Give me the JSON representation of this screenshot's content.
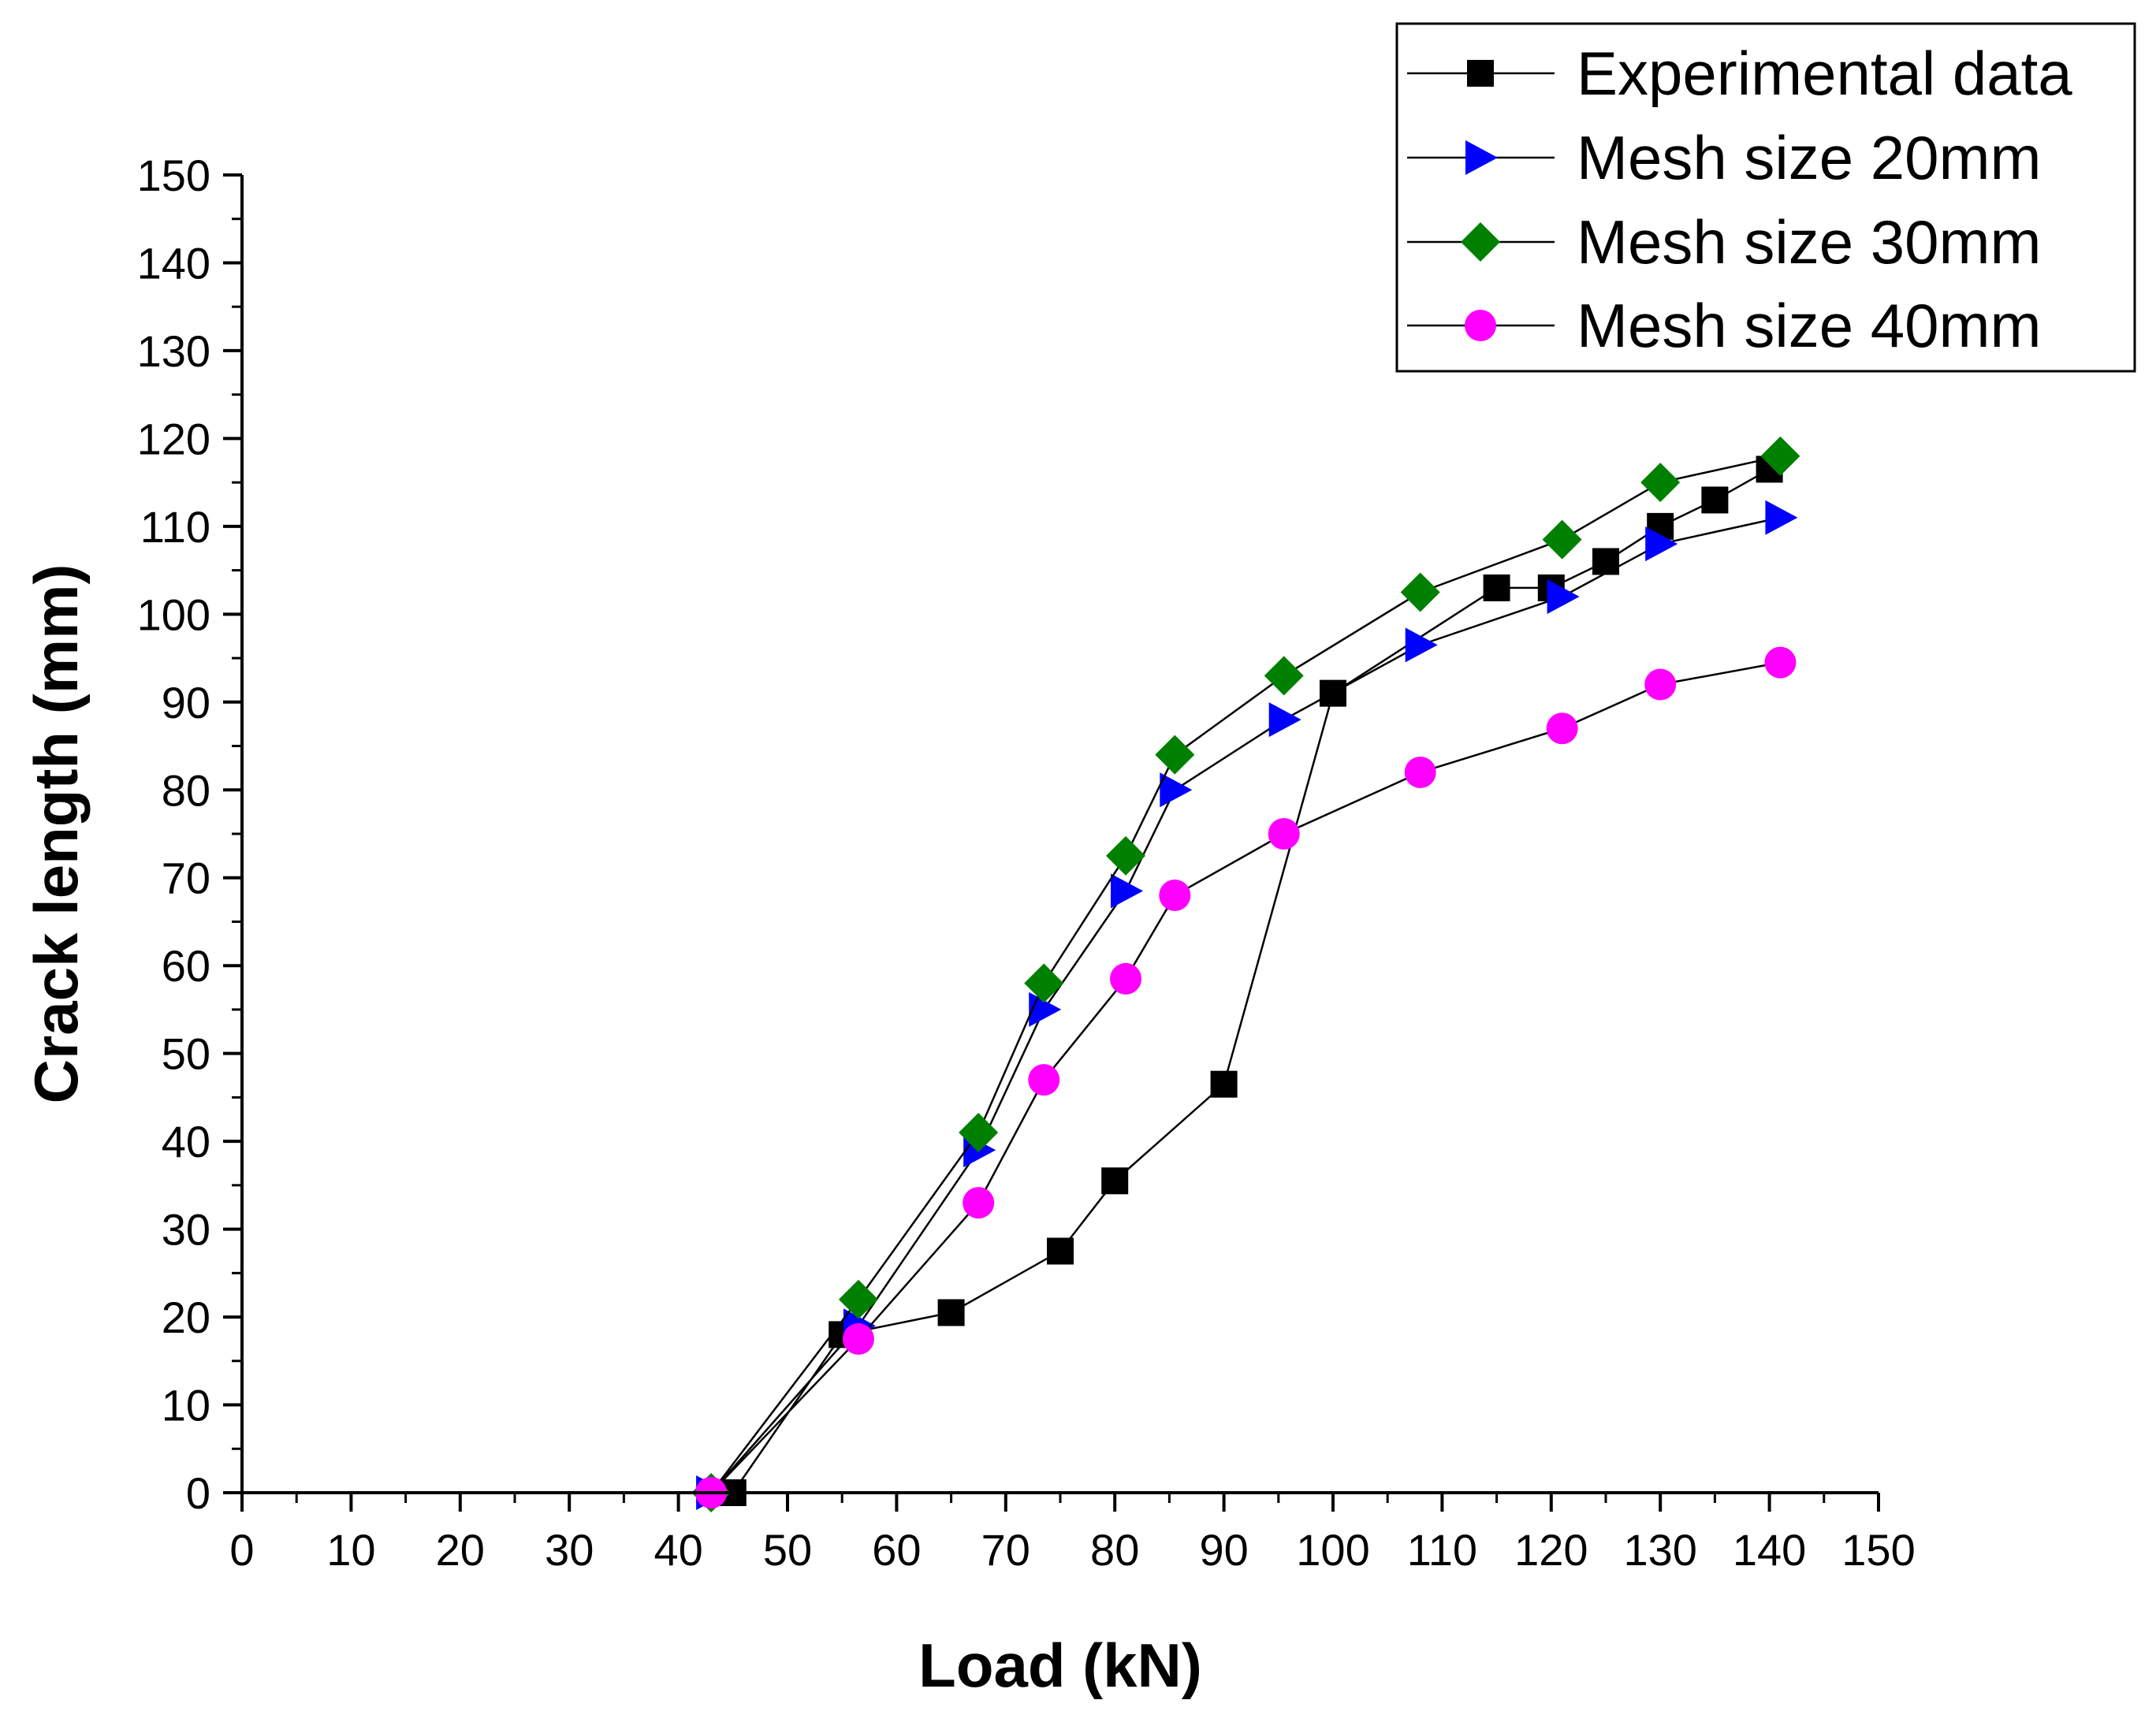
{
  "chart_data": {
    "type": "line",
    "title": "",
    "xlabel": "Load (kN)",
    "ylabel": "Crack length (mm)",
    "xlim": [
      0,
      150
    ],
    "ylim": [
      0,
      150
    ],
    "grid": false,
    "legend_position": "top-right",
    "x_ticks": [
      0,
      10,
      20,
      30,
      40,
      50,
      60,
      70,
      80,
      90,
      100,
      110,
      120,
      130,
      140,
      150
    ],
    "y_ticks": [
      0,
      10,
      20,
      30,
      40,
      50,
      60,
      70,
      80,
      90,
      100,
      110,
      120,
      130,
      140,
      150
    ],
    "series": [
      {
        "name": "Experimental data",
        "marker": "square",
        "color": "#000000",
        "x": [
          45,
          55,
          65,
          75,
          80,
          90,
          100,
          115,
          120,
          125,
          130,
          135,
          140
        ],
        "y": [
          0,
          18,
          20.5,
          27.5,
          35.5,
          46.5,
          91,
          103,
          103,
          106,
          110,
          113,
          116.5
        ]
      },
      {
        "name": "Mesh size 20mm",
        "marker": "triangle-right",
        "color": "#0000ff",
        "x": [
          43,
          56.5,
          67.5,
          73.5,
          81,
          85.5,
          95.5,
          108,
          121,
          130,
          141
        ],
        "y": [
          0,
          19,
          39,
          55,
          68.5,
          80,
          88,
          96.5,
          102,
          108,
          111
        ]
      },
      {
        "name": "Mesh size 30mm",
        "marker": "diamond",
        "color": "#008000",
        "x": [
          43,
          56.5,
          67.5,
          73.5,
          81,
          85.5,
          95.5,
          108,
          121,
          130,
          141
        ],
        "y": [
          0,
          22,
          41,
          58,
          72.5,
          84,
          93,
          102.5,
          108.5,
          115,
          118
        ]
      },
      {
        "name": "Mesh size 40mm",
        "marker": "circle",
        "color": "#ff00ff",
        "x": [
          43,
          56.5,
          67.5,
          73.5,
          81,
          85.5,
          95.5,
          108,
          121,
          130,
          141
        ],
        "y": [
          0,
          17.5,
          33,
          47,
          58.5,
          68,
          75,
          82,
          87,
          92,
          94.5
        ]
      }
    ]
  }
}
